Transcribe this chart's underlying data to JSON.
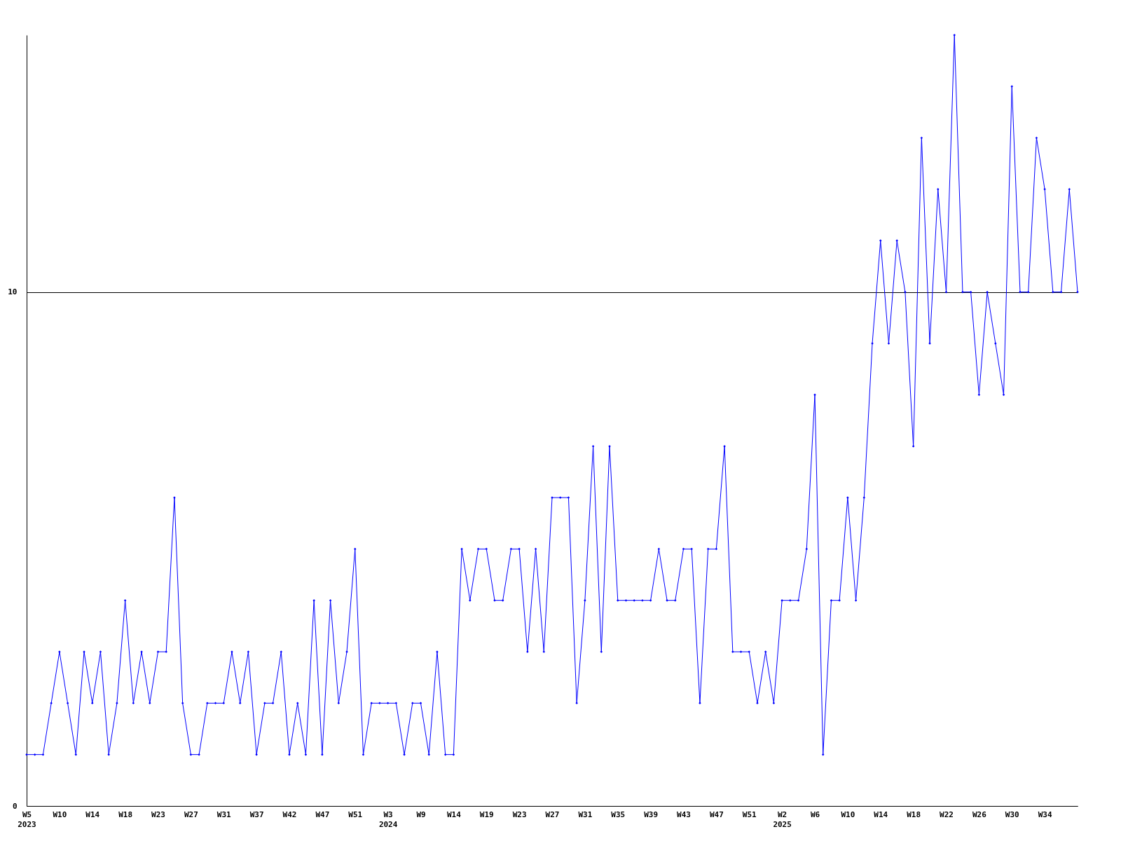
{
  "chart_data": {
    "type": "line",
    "categories": [
      "W5\n2023",
      null,
      null,
      null,
      "W10",
      null,
      null,
      null,
      "W14",
      null,
      null,
      null,
      "W18",
      null,
      null,
      null,
      "W23",
      null,
      null,
      null,
      "W27",
      null,
      null,
      null,
      "W31",
      null,
      null,
      null,
      "W37",
      null,
      null,
      null,
      "W42",
      null,
      null,
      null,
      "W47",
      null,
      null,
      null,
      "W51",
      null,
      null,
      null,
      "W3\n2024",
      null,
      null,
      null,
      "W9",
      null,
      null,
      null,
      "W14",
      null,
      null,
      null,
      "W19",
      null,
      null,
      null,
      "W23",
      null,
      null,
      null,
      "W27",
      null,
      null,
      null,
      "W31",
      null,
      null,
      null,
      "W35",
      null,
      null,
      null,
      "W39",
      null,
      null,
      null,
      "W43",
      null,
      null,
      null,
      "W47",
      null,
      null,
      null,
      "W51",
      null,
      null,
      null,
      "W2\n2025",
      null,
      null,
      null,
      "W6",
      null,
      null,
      null,
      "W10",
      null,
      null,
      null,
      "W14",
      null,
      null,
      null,
      "W18",
      null,
      null,
      null,
      "W22",
      null,
      null,
      null,
      "W26",
      null,
      null,
      null,
      "W30",
      null,
      null,
      null,
      "W34",
      null,
      null,
      null,
      null
    ],
    "series": [
      {
        "color": "#0000ff",
        "values": [
          1,
          1,
          1,
          2,
          3,
          2,
          1,
          3,
          2,
          3,
          1,
          2,
          4,
          2,
          3,
          2,
          3,
          3,
          6,
          2,
          1,
          1,
          2,
          2,
          2,
          3,
          2,
          3,
          1,
          2,
          2,
          3,
          1,
          2,
          1,
          4,
          1,
          4,
          2,
          3,
          5,
          1,
          2,
          2,
          2,
          2,
          1,
          2,
          2,
          1,
          3,
          1,
          1,
          5,
          4,
          5,
          5,
          4,
          4,
          5,
          5,
          3,
          5,
          3,
          6,
          6,
          6,
          2,
          4,
          7,
          3,
          7,
          4,
          4,
          4,
          4,
          4,
          5,
          4,
          4,
          5,
          5,
          2,
          5,
          5,
          7,
          3,
          3,
          3,
          2,
          3,
          2,
          4,
          4,
          4,
          5,
          8,
          1,
          4,
          4,
          6,
          4,
          6,
          9,
          11,
          9,
          11,
          10,
          7,
          13,
          9,
          12,
          10,
          15,
          10,
          10,
          8,
          10,
          9,
          8,
          14,
          10,
          10,
          13,
          12,
          10,
          10,
          12,
          10
        ]
      }
    ],
    "ylim": [
      0,
      15
    ],
    "yticks": [
      0,
      10
    ],
    "grid": "y",
    "marker": "diamond",
    "line_style": "solid"
  }
}
